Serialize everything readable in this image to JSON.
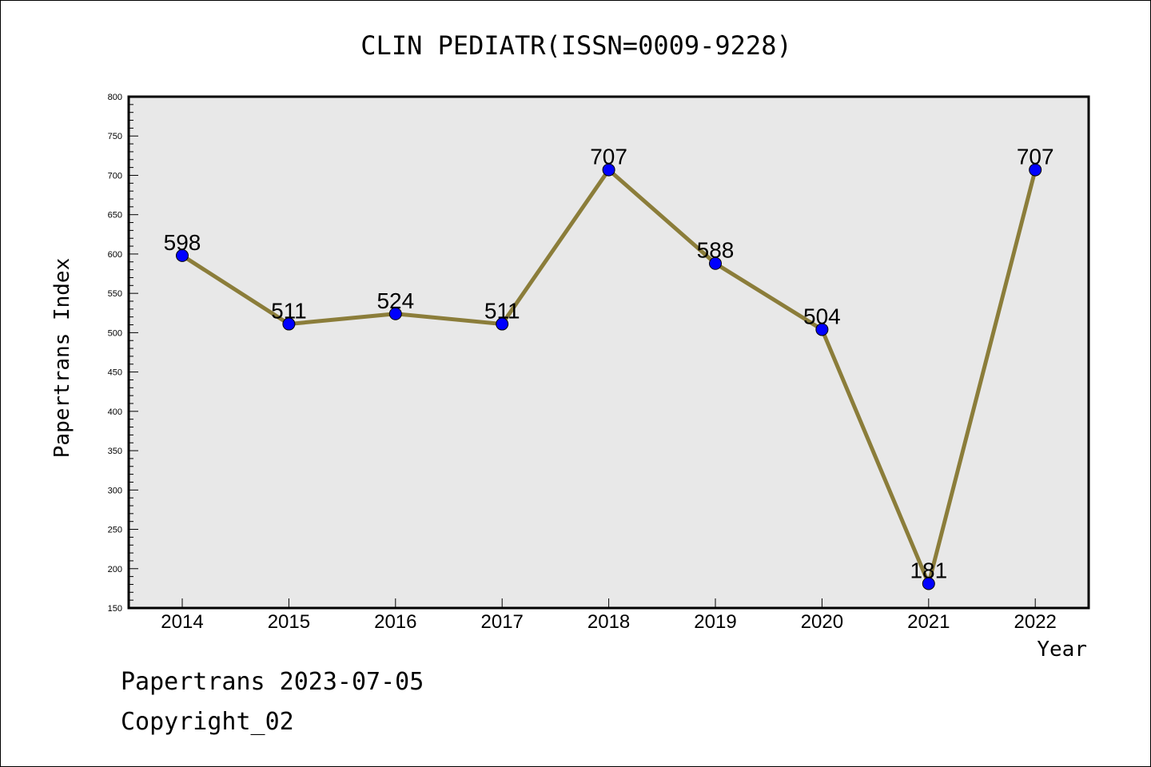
{
  "chart_data": {
    "type": "line",
    "title": "CLIN PEDIATR(ISSN=0009-9228)",
    "xlabel": "Year",
    "ylabel": "Papertrans Index",
    "ylim": [
      150,
      800
    ],
    "y_ticks": [
      150,
      200,
      250,
      300,
      350,
      400,
      450,
      500,
      550,
      600,
      650,
      700,
      750,
      800
    ],
    "categories": [
      "2014",
      "2015",
      "2016",
      "2017",
      "2018",
      "2019",
      "2020",
      "2021",
      "2022"
    ],
    "series": [
      {
        "values": [
          598,
          511,
          524,
          511,
          707,
          588,
          504,
          181,
          707
        ],
        "data_labels": [
          "598",
          "511",
          "524",
          "511",
          "707",
          "588",
          "504",
          "181",
          "707"
        ]
      }
    ],
    "grid": false,
    "line_color": "#8b7d3a",
    "marker_color": "#0000ff",
    "plot_background": "#e8e8e8"
  },
  "footer": {
    "source_date": "Papertrans 2023-07-05",
    "copyright": "Copyright_02"
  }
}
